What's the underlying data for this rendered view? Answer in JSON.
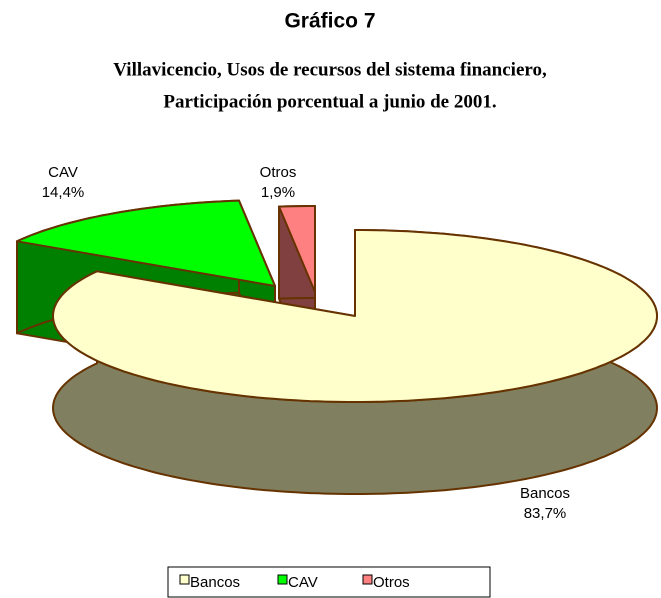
{
  "chart_data": {
    "type": "pie3d",
    "title": "Gráfico 7",
    "subtitle": [
      "Villavicencio, Usos de recursos del sistema financiero,",
      "Participación porcentual a junio de 2001."
    ],
    "categories": [
      "Bancos",
      "CAV",
      "Otros"
    ],
    "values": [
      83.7,
      14.4,
      1.9
    ],
    "value_labels": [
      "83,7%",
      "14,4%",
      "1,9%"
    ],
    "colors": [
      "#FFFFCC",
      "#00FF00",
      "#FF8080"
    ],
    "side_colors": [
      "#808060",
      "#008000",
      "#804040"
    ],
    "legend": "bottom"
  }
}
